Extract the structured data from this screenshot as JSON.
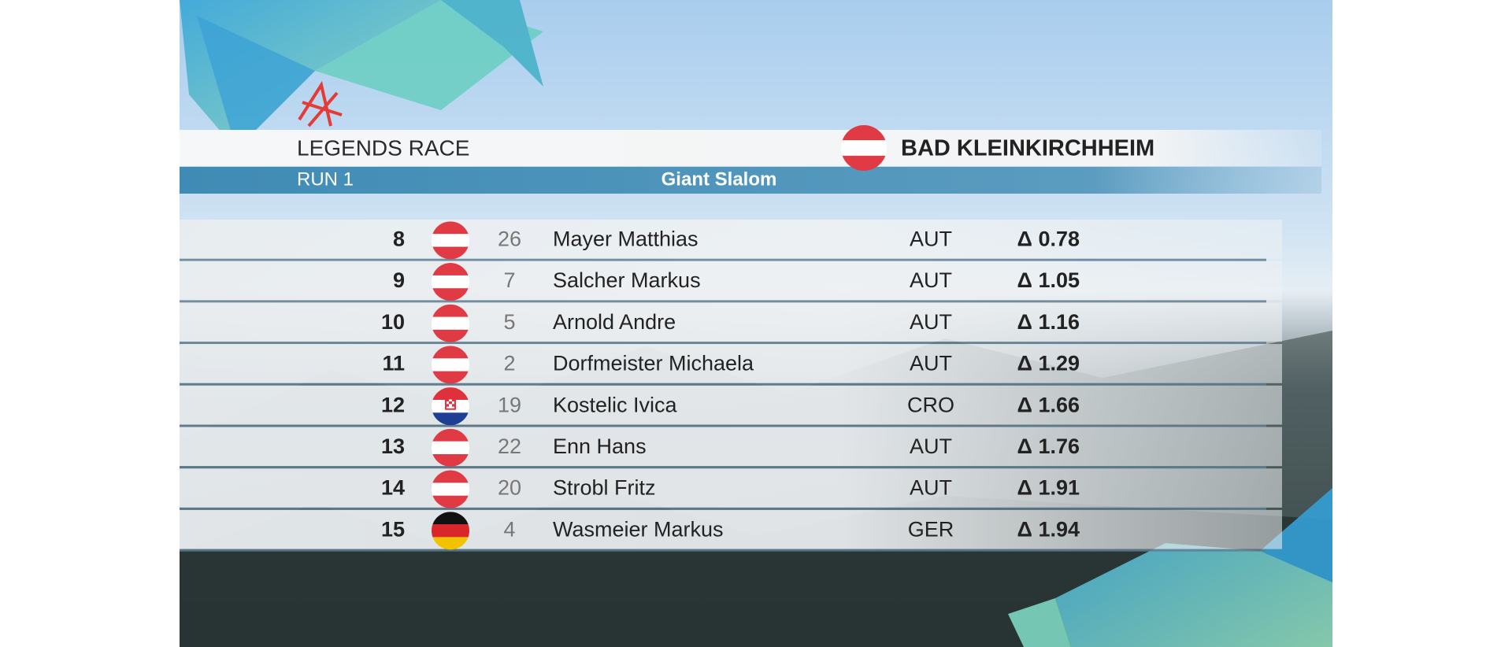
{
  "header": {
    "title": "LEGENDS RACE",
    "run": "RUN 1",
    "discipline": "Giant Slalom",
    "venue": "BAD KLEINKIRCHHEIM"
  },
  "table": {
    "rows": [
      {
        "rank": 8,
        "bib": 26,
        "name": "Mayer Matthias",
        "nation": "AUT",
        "delta": "Δ 0.78"
      },
      {
        "rank": 9,
        "bib": 7,
        "name": "Salcher Markus",
        "nation": "AUT",
        "delta": "Δ 1.05"
      },
      {
        "rank": 10,
        "bib": 5,
        "name": "Arnold Andre",
        "nation": "AUT",
        "delta": "Δ 1.16"
      },
      {
        "rank": 11,
        "bib": 2,
        "name": "Dorfmeister Michaela",
        "nation": "AUT",
        "delta": "Δ 1.29"
      },
      {
        "rank": 12,
        "bib": 19,
        "name": "Kostelic Ivica",
        "nation": "CRO",
        "delta": "Δ 1.66"
      },
      {
        "rank": 13,
        "bib": 22,
        "name": "Enn Hans",
        "nation": "AUT",
        "delta": "Δ 1.76"
      },
      {
        "rank": 14,
        "bib": 20,
        "name": "Strobl Fritz",
        "nation": "AUT",
        "delta": "Δ 1.91"
      },
      {
        "rank": 15,
        "bib": 4,
        "name": "Wasmeier Markus",
        "nation": "GER",
        "delta": "Δ 1.94"
      }
    ]
  }
}
